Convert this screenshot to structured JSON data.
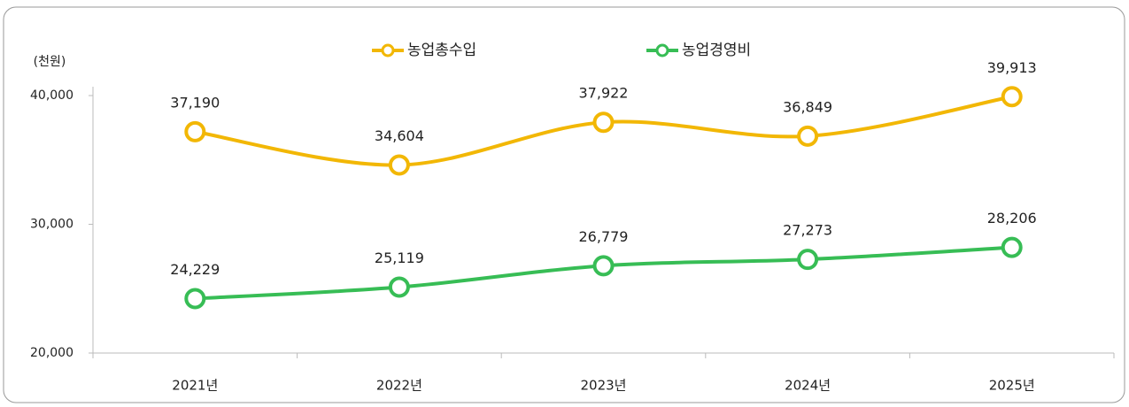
{
  "chart_data": {
    "type": "line",
    "y_label": "(천원)",
    "categories": [
      "2021년",
      "2022년",
      "2023년",
      "2024년",
      "2025년"
    ],
    "series": [
      {
        "name": "농업총수입",
        "color": "#f2b705",
        "values": [
          37190,
          34604,
          37922,
          36849,
          39913
        ],
        "value_labels": [
          "37,190",
          "34,604",
          "37,922",
          "36,849",
          "39,913"
        ]
      },
      {
        "name": "농업경영비",
        "color": "#37bd55",
        "values": [
          24229,
          25119,
          26779,
          27273,
          28206
        ],
        "value_labels": [
          "24,229",
          "25,119",
          "26,779",
          "27,273",
          "28,206"
        ]
      }
    ],
    "ylim": [
      20000,
      40000
    ],
    "yticks": [
      {
        "value": 20000,
        "label": "20,000"
      },
      {
        "value": 30000,
        "label": "30,000"
      },
      {
        "value": 40000,
        "label": "40,000"
      }
    ],
    "smooth": true,
    "legend": "top"
  }
}
